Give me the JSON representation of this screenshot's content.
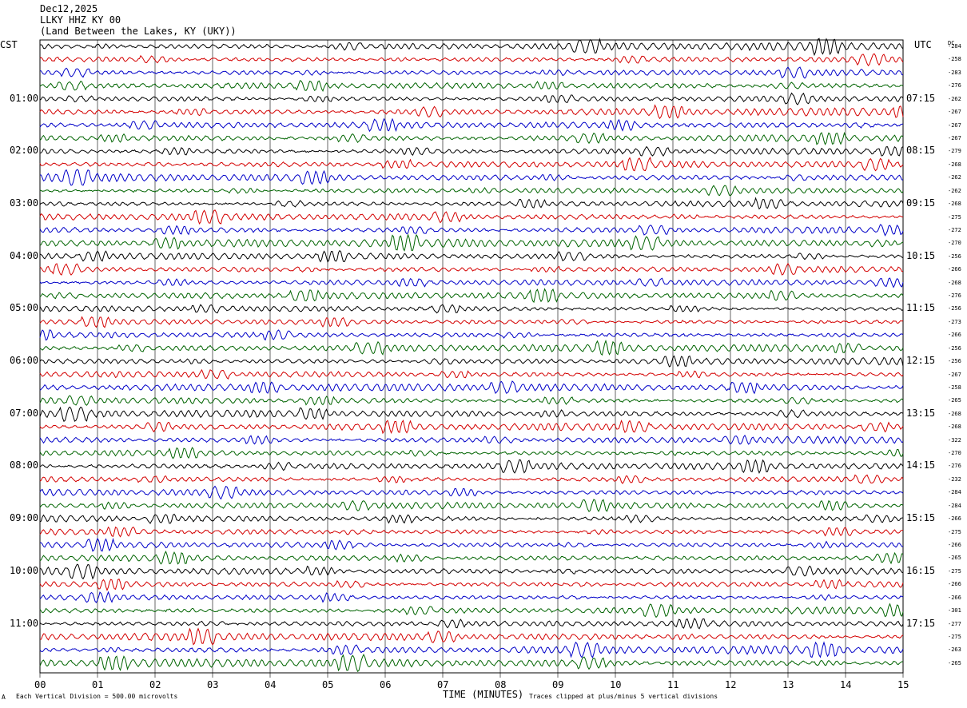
{
  "header": {
    "date": "Dec12,2025",
    "station": "LLKY HHZ KY 00",
    "location": "(Land Between the Lakes, KY (UKY))"
  },
  "left_zone": "CST",
  "right_zone": "UTC",
  "dc_label": "DC",
  "footer": {
    "corner_mark": "A",
    "scale_note": "Each Vertical Division = 500.00 microvolts",
    "xlabel": "TIME (MINUTES)",
    "clip_note": "Traces clipped at plus/minus 5 vertical divisions"
  },
  "colors": {
    "row0": "#000000",
    "row1": "#d40000",
    "row2": "#0000c8",
    "row3": "#006400",
    "grid": "#000000"
  },
  "chart_data": {
    "type": "line",
    "title": "LLKY HHZ KY 00",
    "xlabel": "TIME (MINUTES)",
    "xlim": [
      0,
      15
    ],
    "x_tick_labels": [
      "00",
      "01",
      "02",
      "03",
      "04",
      "05",
      "06",
      "07",
      "08",
      "09",
      "10",
      "11",
      "12",
      "13",
      "14",
      "15"
    ],
    "rows_per_hour": 4,
    "row_minutes": 15,
    "row_count": 48,
    "left_hour_labels": [
      "01:00",
      "02:00",
      "03:00",
      "04:00",
      "05:00",
      "06:00",
      "07:00",
      "08:00",
      "09:00",
      "10:00",
      "11:00"
    ],
    "right_hour_labels": [
      "07:15",
      "08:15",
      "09:15",
      "10:15",
      "11:15",
      "12:15",
      "13:15",
      "14:15",
      "15:15",
      "16:15",
      "17:15"
    ],
    "dc_offsets": [
      "-284",
      "-258",
      "-283",
      "-276",
      "-262",
      "-267",
      "-267",
      "-267",
      "-279",
      "-268",
      "-262",
      "-262",
      "-268",
      "-275",
      "-272",
      "-270",
      "-256",
      "-266",
      "-268",
      "-276",
      "-256",
      "-273",
      "-266",
      "-256",
      "-256",
      "-267",
      "-258",
      "-265",
      "-268",
      "-268",
      "-322",
      "-270",
      "-276",
      "-232",
      "-284",
      "-284",
      "-266",
      "-275",
      "-266",
      "-265",
      "-275",
      "-266",
      "-266",
      "-301",
      "-277",
      "-275",
      "-263",
      "-265"
    ],
    "trace_colors": [
      "black",
      "red",
      "blue",
      "green"
    ],
    "scale_microvolts_per_division": 500.0,
    "clip_divisions": 5
  }
}
